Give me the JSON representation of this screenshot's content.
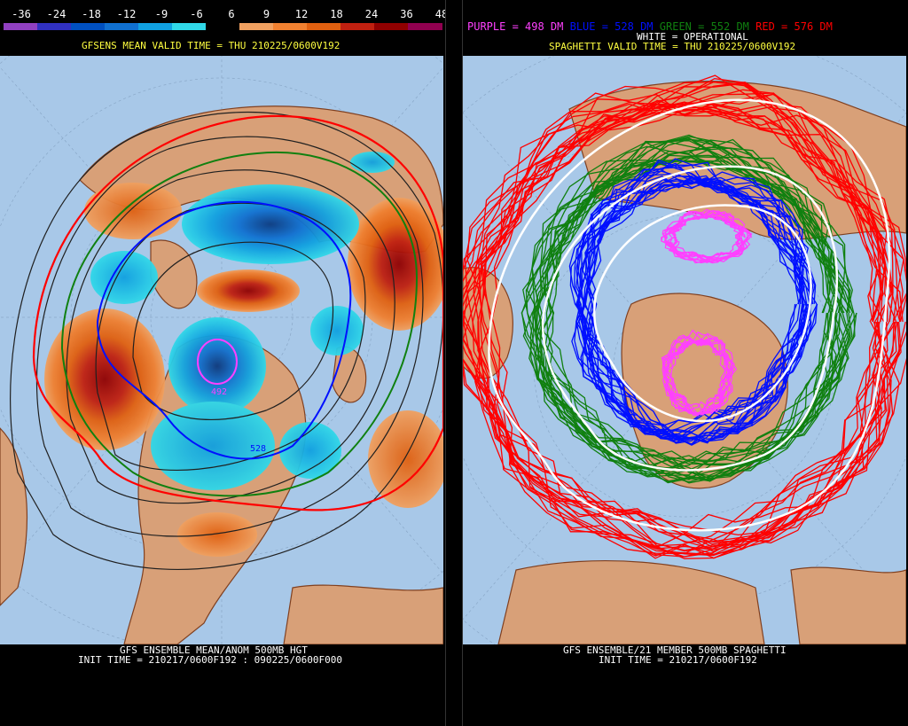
{
  "left": {
    "scale": {
      "labels": [
        "-36",
        "-24",
        "-18",
        "-12",
        "-9",
        "-6",
        "6",
        "9",
        "12",
        "18",
        "24",
        "36",
        "48"
      ],
      "colors": [
        "#9040c0",
        "#3030c0",
        "#0050c0",
        "#1070d0",
        "#10a0e0",
        "#30d8e8",
        "#000000",
        "#f0a060",
        "#f08030",
        "#e06010",
        "#c02010",
        "#900000",
        "#900050"
      ]
    },
    "header_line": "GFSENS MEAN VALID TIME = THU 210225/0600V192",
    "contour_label_492": "492",
    "contour_label_528": "528",
    "footer_line1": "GFS ENSEMBLE MEAN/ANOM 500MB HGT",
    "footer_line2": "INIT TIME = 210217/0600F192 : 090225/0600F000"
  },
  "right": {
    "legend_purple": "PURPLE = 498 DM",
    "legend_blue": "BLUE = 528 DM",
    "legend_green": "GREEN = 552 DM",
    "legend_red": "RED = 576 DM",
    "legend_white": "WHITE = OPERATIONAL",
    "header_line": "SPAGHETTI VALID TIME = THU 210225/0600V192",
    "footer_line1": "GFS ENSEMBLE/21 MEMBER 500MB SPAGHETTI",
    "footer_line2": "INIT TIME = 210217/0600F192"
  },
  "colors": {
    "ocean": "#a8c8e8",
    "land": "#d8a078",
    "coast": "#804020",
    "purple": "#ff40ff",
    "blue": "#0010ff",
    "green": "#108010",
    "red": "#ff0000",
    "white": "#ffffff",
    "header_text": "#ffff40"
  }
}
